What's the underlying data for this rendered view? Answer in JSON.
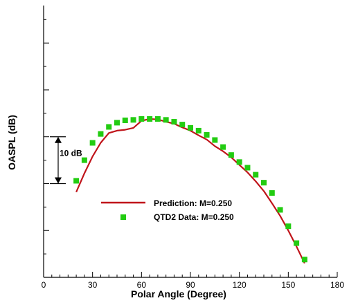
{
  "chart_data": {
    "type": "line",
    "title": "",
    "xlabel": "Polar Angle (Degree)",
    "ylabel": "OASPL (dB)",
    "xlim": [
      0,
      180
    ],
    "x_ticks": [
      0,
      30,
      60,
      90,
      120,
      150,
      180
    ],
    "x_tick_labels": [
      "0",
      "30",
      "60",
      "90",
      "120",
      "150",
      "180"
    ],
    "y_units": "dB relative to scale bar (no numeric tick labels shown)",
    "ylim": [
      -20,
      38
    ],
    "y_ticks": [
      -20,
      -15,
      -10,
      -5,
      0,
      5,
      10,
      15,
      20,
      25,
      30,
      35
    ],
    "grid": false,
    "legend_position": "lower-left",
    "annotation": {
      "text": "10 dB",
      "y_low": 0,
      "y_high": 10
    },
    "colors": {
      "prediction": "#c0141a",
      "qtd2": "#22cc11"
    },
    "series": [
      {
        "name": "Prediction: M=0.250",
        "style": "line",
        "x": [
          20,
          25,
          30,
          35,
          40,
          45,
          50,
          55,
          60,
          65,
          70,
          75,
          80,
          85,
          90,
          95,
          100,
          105,
          110,
          115,
          120,
          125,
          130,
          135,
          140,
          145,
          150,
          155,
          160
        ],
        "y": [
          -1.8,
          2.2,
          5.8,
          8.7,
          10.8,
          11.3,
          11.5,
          11.9,
          13.4,
          13.8,
          13.7,
          13.2,
          12.8,
          12.0,
          11.3,
          10.3,
          9.4,
          8.0,
          6.9,
          5.6,
          4.0,
          2.4,
          0.5,
          -1.6,
          -4.2,
          -6.9,
          -10.0,
          -13.4,
          -17.0
        ]
      },
      {
        "name": "QTD2 Data: M=0.250",
        "style": "markers",
        "x": [
          20,
          25,
          30,
          35,
          40,
          45,
          50,
          55,
          60,
          65,
          70,
          75,
          80,
          85,
          90,
          95,
          100,
          105,
          110,
          115,
          120,
          125,
          130,
          135,
          140,
          145,
          150,
          155,
          160
        ],
        "y": [
          0.6,
          5.0,
          8.7,
          10.6,
          12.1,
          13.0,
          13.5,
          13.6,
          13.8,
          13.8,
          13.8,
          13.6,
          13.2,
          12.6,
          11.9,
          11.3,
          10.4,
          9.3,
          7.8,
          6.1,
          4.6,
          3.4,
          1.9,
          0.2,
          -2.0,
          -5.6,
          -9.1,
          -12.7,
          -16.2
        ]
      }
    ]
  }
}
